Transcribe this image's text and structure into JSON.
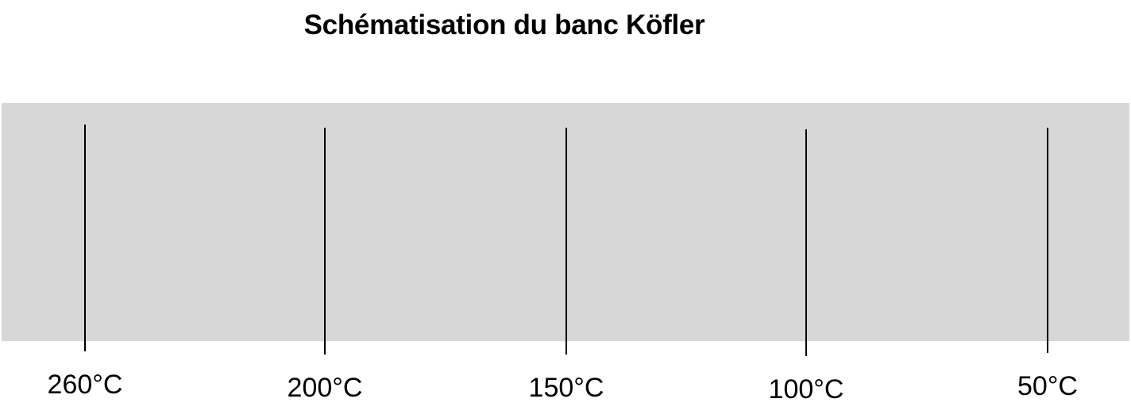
{
  "title": "Schématisation du banc Köfler",
  "bench": {
    "color": "#d7d7d7",
    "marks": [
      {
        "label": "260°C",
        "temperature": 260
      },
      {
        "label": "200°C",
        "temperature": 200
      },
      {
        "label": "150°C",
        "temperature": 150
      },
      {
        "label": "100°C",
        "temperature": 100
      },
      {
        "label": "50°C",
        "temperature": 50
      }
    ]
  }
}
